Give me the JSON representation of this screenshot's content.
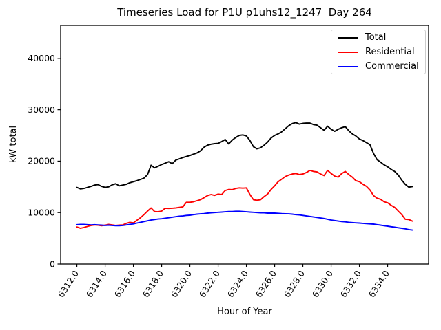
{
  "figure": {
    "background": "#ffffff"
  },
  "chart_data": {
    "type": "line",
    "title": "Timeseries Load for P1U p1uhs12_1247  Day 264",
    "xlabel": "Hour of Year",
    "ylabel": "kW total",
    "grid": false,
    "xlim": [
      6310.85,
      6336.9
    ],
    "ylim": [
      0,
      46400
    ],
    "xticks": [
      6312,
      6314,
      6316,
      6318,
      6320,
      6322,
      6324,
      6326,
      6328,
      6330,
      6332,
      6334
    ],
    "xtick_labels": [
      "6312.0",
      "6314.0",
      "6316.0",
      "6318.0",
      "6320.0",
      "6322.0",
      "6324.0",
      "6326.0",
      "6328.0",
      "6330.0",
      "6332.0",
      "6334.0"
    ],
    "yticks": [
      0,
      10000,
      20000,
      30000,
      40000
    ],
    "ytick_labels": [
      "0",
      "10000",
      "20000",
      "30000",
      "40000"
    ],
    "legend": {
      "position": "upper right",
      "entries": [
        "Total",
        "Residential",
        "Commercial"
      ]
    },
    "x": [
      6312.0,
      6312.25,
      6312.5,
      6312.75,
      6313.0,
      6313.25,
      6313.5,
      6313.75,
      6314.0,
      6314.25,
      6314.5,
      6314.75,
      6315.0,
      6315.25,
      6315.5,
      6315.75,
      6316.0,
      6316.25,
      6316.5,
      6316.75,
      6317.0,
      6317.25,
      6317.5,
      6317.75,
      6318.0,
      6318.25,
      6318.5,
      6318.75,
      6319.0,
      6319.25,
      6319.5,
      6319.75,
      6320.0,
      6320.25,
      6320.5,
      6320.75,
      6321.0,
      6321.25,
      6321.5,
      6321.75,
      6322.0,
      6322.25,
      6322.5,
      6322.75,
      6323.0,
      6323.25,
      6323.5,
      6323.75,
      6324.0,
      6324.25,
      6324.5,
      6324.75,
      6325.0,
      6325.25,
      6325.5,
      6325.75,
      6326.0,
      6326.25,
      6326.5,
      6326.75,
      6327.0,
      6327.25,
      6327.5,
      6327.75,
      6328.0,
      6328.25,
      6328.5,
      6328.75,
      6329.0,
      6329.25,
      6329.5,
      6329.75,
      6330.0,
      6330.25,
      6330.5,
      6330.75,
      6331.0,
      6331.25,
      6331.5,
      6331.75,
      6332.0,
      6332.25,
      6332.5,
      6332.75,
      6333.0,
      6333.25,
      6333.5,
      6333.75,
      6334.0,
      6334.25,
      6334.5,
      6334.75,
      6335.0,
      6335.25,
      6335.5,
      6335.75
    ],
    "series": [
      {
        "name": "Total",
        "color": "#000000",
        "values": [
          14900,
          14600,
          14700,
          14900,
          15100,
          15350,
          15450,
          15100,
          14900,
          15000,
          15400,
          15600,
          15200,
          15350,
          15500,
          15800,
          16000,
          16200,
          16450,
          16700,
          17400,
          19200,
          18700,
          19000,
          19350,
          19600,
          19900,
          19500,
          20200,
          20450,
          20700,
          20900,
          21100,
          21350,
          21600,
          22000,
          22700,
          23100,
          23300,
          23400,
          23450,
          23800,
          24200,
          23350,
          24100,
          24600,
          25000,
          25100,
          24900,
          24000,
          22800,
          22400,
          22600,
          23100,
          23700,
          24500,
          25000,
          25300,
          25700,
          26300,
          26900,
          27300,
          27500,
          27200,
          27350,
          27400,
          27400,
          27100,
          27000,
          26500,
          26000,
          26800,
          26200,
          25800,
          26200,
          26500,
          26700,
          25900,
          25300,
          24900,
          24300,
          24000,
          23600,
          23200,
          21500,
          20300,
          19800,
          19300,
          18900,
          18400,
          18000,
          17300,
          16300,
          15500,
          14950,
          15050
        ]
      },
      {
        "name": "Residential",
        "color": "#ff0000",
        "values": [
          7200,
          6950,
          7100,
          7300,
          7500,
          7600,
          7550,
          7450,
          7550,
          7700,
          7600,
          7500,
          7550,
          7600,
          7900,
          8100,
          8000,
          8500,
          9000,
          9600,
          10300,
          10900,
          10200,
          10150,
          10300,
          10850,
          10800,
          10850,
          10900,
          11000,
          11100,
          12000,
          12000,
          12100,
          12300,
          12500,
          12900,
          13300,
          13500,
          13350,
          13600,
          13500,
          14300,
          14500,
          14450,
          14700,
          14800,
          14750,
          14800,
          13500,
          12500,
          12400,
          12500,
          13100,
          13600,
          14500,
          15200,
          16000,
          16500,
          17000,
          17300,
          17500,
          17600,
          17400,
          17500,
          17800,
          18200,
          18000,
          17900,
          17500,
          17200,
          18200,
          17600,
          17100,
          16900,
          17600,
          18000,
          17400,
          16900,
          16200,
          16000,
          15500,
          15100,
          14400,
          13300,
          12800,
          12600,
          12100,
          11900,
          11400,
          11000,
          10300,
          9600,
          8700,
          8650,
          8350
        ]
      },
      {
        "name": "Commercial",
        "color": "#0000ff",
        "values": [
          7650,
          7700,
          7700,
          7650,
          7600,
          7650,
          7600,
          7550,
          7500,
          7550,
          7500,
          7450,
          7450,
          7500,
          7600,
          7700,
          7800,
          7950,
          8100,
          8250,
          8400,
          8550,
          8650,
          8750,
          8800,
          8900,
          9000,
          9100,
          9200,
          9300,
          9350,
          9450,
          9500,
          9600,
          9700,
          9750,
          9800,
          9900,
          9950,
          10000,
          10050,
          10100,
          10150,
          10200,
          10200,
          10250,
          10250,
          10200,
          10150,
          10100,
          10050,
          10000,
          9950,
          9950,
          9900,
          9900,
          9900,
          9850,
          9800,
          9780,
          9750,
          9700,
          9600,
          9550,
          9450,
          9350,
          9250,
          9150,
          9050,
          8950,
          8850,
          8700,
          8550,
          8450,
          8350,
          8250,
          8200,
          8100,
          8050,
          8000,
          7950,
          7900,
          7850,
          7800,
          7750,
          7650,
          7550,
          7450,
          7350,
          7250,
          7150,
          7050,
          6950,
          6850,
          6700,
          6600
        ]
      }
    ]
  }
}
